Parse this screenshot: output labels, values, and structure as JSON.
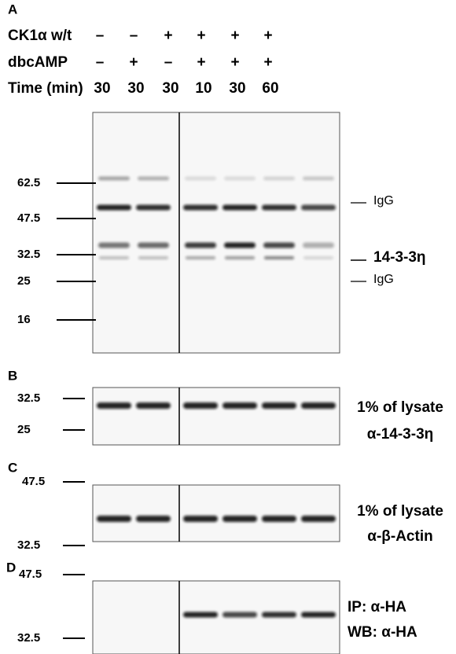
{
  "panel_a": {
    "label": "A",
    "conditions": [
      {
        "label": "CK1α w/t",
        "values": [
          "–",
          "–",
          "+",
          "+",
          "+",
          "+"
        ]
      },
      {
        "label": "dbcAMP",
        "values": [
          "–",
          "+",
          "–",
          "+",
          "+",
          "+"
        ]
      },
      {
        "label": "Time (min)",
        "values": [
          30,
          30,
          30,
          10,
          30,
          60
        ]
      }
    ],
    "markers": [
      62.5,
      47.5,
      32.5,
      25,
      16
    ],
    "annotations": [
      "IgG",
      "14-3-3η",
      "IgG"
    ]
  },
  "panel_b": {
    "label": "B",
    "markers": [
      32.5,
      25
    ],
    "annotations": [
      "1% of lysate",
      "α-14-3-3η"
    ]
  },
  "panel_c": {
    "label": "C",
    "markers": [
      47.5,
      32.5
    ],
    "annotations": [
      "1% of lysate",
      "α-β-Actin"
    ]
  },
  "panel_d": {
    "label": "D",
    "markers": [
      47.5,
      32.5
    ],
    "annotations": [
      "IP: α-HA",
      "WB: α-HA"
    ]
  }
}
